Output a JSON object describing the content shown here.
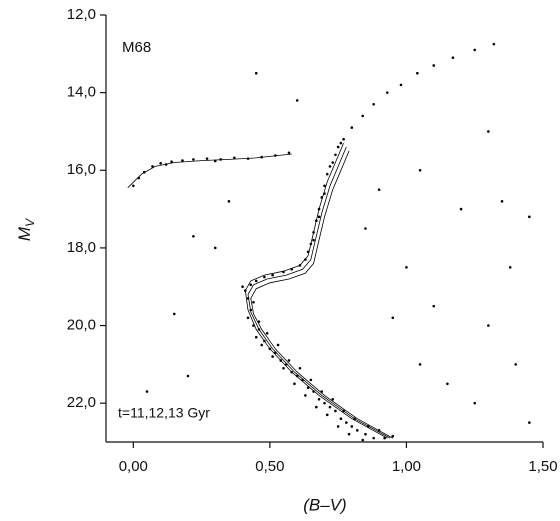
{
  "chart_data": {
    "type": "scatter",
    "annotations": [
      "M68",
      "t=11,12,13 Gyr"
    ],
    "xlabel": "(B–V)",
    "ylabel": {
      "main": "M",
      "sub": "V"
    },
    "xlim": [
      -0.1,
      1.5
    ],
    "ylim": [
      23.0,
      12.0
    ],
    "xticks": [
      {
        "value": 0,
        "label": "0,00"
      },
      {
        "value": 0.5,
        "label": "0,50"
      },
      {
        "value": 1,
        "label": "1,00"
      },
      {
        "value": 1.5,
        "label": "1,50"
      }
    ],
    "yticks": [
      {
        "value": 12,
        "label": "12,0"
      },
      {
        "value": 14,
        "label": "14,0"
      },
      {
        "value": 16,
        "label": "16,0"
      },
      {
        "value": 18,
        "label": "18,0"
      },
      {
        "value": 20,
        "label": "20,0"
      },
      {
        "value": 22,
        "label": "22,0"
      }
    ],
    "color": "#000000",
    "points": {
      "x": [
        0.41,
        0.42,
        0.43,
        0.42,
        0.44,
        0.46,
        0.45,
        0.48,
        0.5,
        0.47,
        0.52,
        0.54,
        0.51,
        0.56,
        0.58,
        0.55,
        0.6,
        0.62,
        0.59,
        0.64,
        0.66,
        0.63,
        0.68,
        0.7,
        0.67,
        0.72,
        0.74,
        0.71,
        0.76,
        0.78,
        0.75,
        0.8,
        0.82,
        0.79,
        0.85,
        0.88,
        0.84,
        0.92,
        0.44,
        0.46,
        0.49,
        0.53,
        0.57,
        0.61,
        0.65,
        0.69,
        0.73,
        0.77,
        0.81,
        0.86,
        0.9,
        0.95,
        0.4,
        0.43,
        0.45,
        0.48,
        0.51,
        0.55,
        0.58,
        0.61,
        0.63,
        0.64,
        0.65,
        0.66,
        0.67,
        0.68,
        0.69,
        0.7,
        0.71,
        0.72,
        0.74,
        0.75,
        0.77,
        0.8,
        0.84,
        0.88,
        0.93,
        0.98,
        1.04,
        1.1,
        1.17,
        1.25,
        1.32,
        0.66,
        0.68,
        0.7,
        0.73,
        0.76,
        0.0,
        0.02,
        0.04,
        0.07,
        0.1,
        0.14,
        0.18,
        0.22,
        0.27,
        0.32,
        0.37,
        0.42,
        0.47,
        0.52,
        0.57,
        0.12,
        0.3,
        0.05,
        0.22,
        0.3,
        0.15,
        1.05,
        1.2,
        1.35,
        1.45,
        1.0,
        1.1,
        1.3,
        1.4,
        1.25,
        1.15,
        0.95,
        0.85,
        0.9,
        1.38,
        0.6,
        0.45,
        0.35,
        1.45,
        1.05,
        0.2,
        1.3
      ],
      "y": [
        19.1,
        19.3,
        19.6,
        19.8,
        20.0,
        20.1,
        20.3,
        20.4,
        20.6,
        20.5,
        20.7,
        20.9,
        20.8,
        21.0,
        21.2,
        21.1,
        21.3,
        21.4,
        21.5,
        21.6,
        21.7,
        21.8,
        21.9,
        22.0,
        22.1,
        22.1,
        22.2,
        22.3,
        22.4,
        22.5,
        22.6,
        22.6,
        22.7,
        22.8,
        22.8,
        22.9,
        22.95,
        22.9,
        19.4,
        19.9,
        20.2,
        20.5,
        20.9,
        21.1,
        21.4,
        21.7,
        21.9,
        22.2,
        22.4,
        22.6,
        22.7,
        22.85,
        19.0,
        18.95,
        18.85,
        18.75,
        18.7,
        18.62,
        18.55,
        18.45,
        18.3,
        18.1,
        17.9,
        17.6,
        17.3,
        17.0,
        16.7,
        16.4,
        16.1,
        15.9,
        15.6,
        15.4,
        15.2,
        14.9,
        14.6,
        14.3,
        14.0,
        13.8,
        13.5,
        13.3,
        13.1,
        12.9,
        12.75,
        17.8,
        17.2,
        16.6,
        15.8,
        15.3,
        16.4,
        16.2,
        16.05,
        15.9,
        15.82,
        15.78,
        15.75,
        15.72,
        15.7,
        15.72,
        15.68,
        15.7,
        15.66,
        15.62,
        15.55,
        15.85,
        15.76,
        21.7,
        17.7,
        18.0,
        19.7,
        16.0,
        17.0,
        16.8,
        17.2,
        18.5,
        19.5,
        20.0,
        21.0,
        22.0,
        21.5,
        19.8,
        17.5,
        16.5,
        18.5,
        14.2,
        13.5,
        16.8,
        22.5,
        21.0,
        21.3,
        15.0
      ]
    },
    "lines": [
      {
        "x": [
          0.93,
          0.8,
          0.68,
          0.58,
          0.5,
          0.45,
          0.42,
          0.41,
          0.43,
          0.48,
          0.55,
          0.61,
          0.64,
          0.66,
          0.68,
          0.71,
          0.74,
          0.77
        ],
        "y": [
          22.9,
          22.4,
          21.8,
          21.2,
          20.6,
          20.1,
          19.6,
          19.1,
          18.85,
          18.7,
          18.6,
          18.45,
          18.2,
          17.6,
          17.0,
          16.3,
          15.8,
          15.3
        ]
      },
      {
        "x": [
          0.94,
          0.81,
          0.69,
          0.59,
          0.51,
          0.46,
          0.43,
          0.42,
          0.44,
          0.49,
          0.56,
          0.62,
          0.65,
          0.67,
          0.69,
          0.72,
          0.75,
          0.78
        ],
        "y": [
          22.9,
          22.4,
          21.8,
          21.2,
          20.6,
          20.1,
          19.65,
          19.2,
          18.95,
          18.8,
          18.7,
          18.55,
          18.3,
          17.7,
          17.1,
          16.4,
          15.9,
          15.4
        ]
      },
      {
        "x": [
          0.95,
          0.82,
          0.7,
          0.6,
          0.52,
          0.47,
          0.44,
          0.43,
          0.45,
          0.5,
          0.57,
          0.63,
          0.66,
          0.68,
          0.7,
          0.73,
          0.76,
          0.79
        ],
        "y": [
          22.9,
          22.4,
          21.8,
          21.2,
          20.6,
          20.1,
          19.7,
          19.3,
          19.05,
          18.9,
          18.8,
          18.65,
          18.4,
          17.8,
          17.2,
          16.5,
          16.0,
          15.5
        ]
      },
      {
        "x": [
          -0.02,
          0.03,
          0.08,
          0.15,
          0.25,
          0.35,
          0.45,
          0.58
        ],
        "y": [
          16.45,
          16.1,
          15.9,
          15.8,
          15.75,
          15.72,
          15.68,
          15.58
        ]
      }
    ]
  }
}
